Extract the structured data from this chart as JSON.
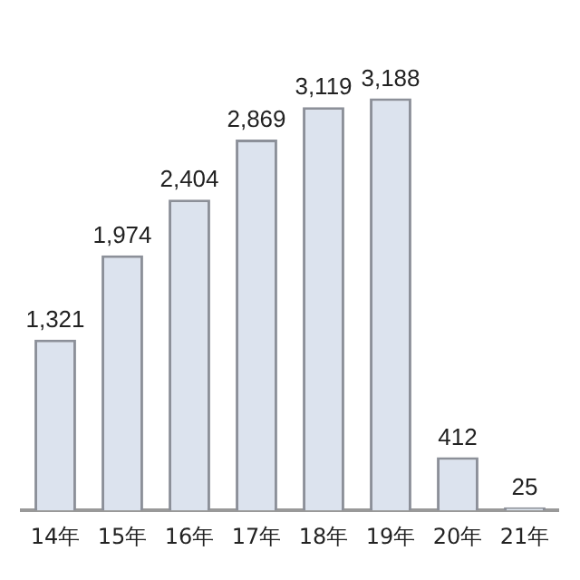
{
  "chart_data": {
    "type": "bar",
    "categories": [
      "14年",
      "15年",
      "16年",
      "17年",
      "18年",
      "19年",
      "20年",
      "21年"
    ],
    "values": [
      1321,
      1974,
      2404,
      2869,
      3119,
      3188,
      412,
      25
    ],
    "value_labels": [
      "1,321",
      "1,974",
      "2,404",
      "2,869",
      "3,119",
      "3,188",
      "412",
      "25"
    ],
    "color": "#dce3ee",
    "grid": false,
    "legend": false
  }
}
